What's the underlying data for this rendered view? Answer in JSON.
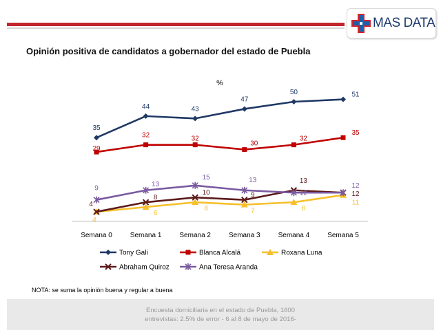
{
  "header": {
    "logo_text": "MAS DATA"
  },
  "title": "Opinión positiva de candidatos a gobernador del estado de Puebla",
  "note": "NOTA: se suma la opinión buena y regular a buena",
  "footer": {
    "line1": "Encuesta domiciliaria en el estado de Puebla, 1600",
    "line2": "entrevistas: 2.5% de error - 6 al 8 de mayo de 2016-"
  },
  "chart_data": {
    "type": "line",
    "unit_label": "%",
    "categories": [
      "Semana 0",
      "Semana 1",
      "Semana 2",
      "Semana 3",
      "Semana 4",
      "Semana 5"
    ],
    "legend_position": "bottom",
    "grid": false,
    "series": [
      {
        "name": "Tony Gali",
        "color": "#1f3864",
        "marker": "diamond",
        "values": [
          35,
          44,
          43,
          47,
          50,
          51
        ]
      },
      {
        "name": "Blanca Alcalá",
        "color": "#c00000",
        "marker": "square",
        "values": [
          29,
          32,
          32,
          30,
          32,
          35
        ]
      },
      {
        "name": "Roxana Luna",
        "color": "#f6c02c",
        "marker": "triangle",
        "values": [
          4,
          6,
          8,
          7,
          8,
          11
        ]
      },
      {
        "name": "Abraham Quiroz",
        "color": "#5c1a1a",
        "marker": "x",
        "values": [
          4,
          8,
          10,
          9,
          13,
          12
        ]
      },
      {
        "name": "Ana Teresa Aranda",
        "color": "#7a5aa0",
        "marker": "star",
        "values": [
          9,
          13,
          15,
          13,
          12,
          12
        ]
      }
    ]
  }
}
